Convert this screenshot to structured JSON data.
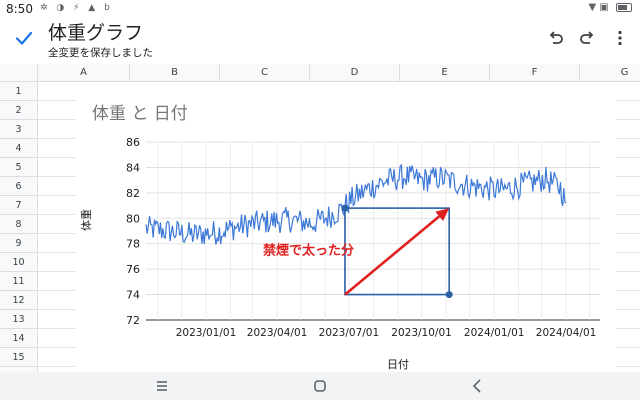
{
  "status_bar": {
    "time": "8:50",
    "left_icons": "✲ ◑ ⚡ ▲ b",
    "right_icons": "▼ ▣"
  },
  "toolbar": {
    "title": "体重グラフ",
    "subtitle": "全変更を保存しました"
  },
  "grid": {
    "columns": [
      "A",
      "B",
      "C",
      "D",
      "E",
      "F",
      "G"
    ],
    "rows": [
      "1",
      "2",
      "3",
      "4",
      "5",
      "6",
      "7",
      "8",
      "9",
      "10",
      "11",
      "12",
      "13",
      "14",
      "15",
      "16"
    ]
  },
  "chart_data": {
    "type": "line",
    "title": "体重 と 日付",
    "xlabel": "日付",
    "ylabel": "体重",
    "ylim": [
      72,
      86
    ],
    "yticks": [
      72,
      74,
      76,
      78,
      80,
      82,
      84,
      86
    ],
    "xlim": [
      "2022-10-17",
      "2024-05-14"
    ],
    "xtick_labels": [
      "2023/01/01",
      "2023/04/01",
      "2023/07/01",
      "2023/10/01",
      "2024/01/01",
      "2024/04/01"
    ],
    "xtick_dates": [
      "2023-01-01",
      "2023-04-01",
      "2023-07-01",
      "2023-10-01",
      "2024-01-01",
      "2024-04-01"
    ],
    "grid": true,
    "series": [
      {
        "color": "#3c78d8",
        "keypoints": [
          [
            "2022-10-17",
            79.2
          ],
          [
            "2022-11-15",
            79.0
          ],
          [
            "2022-12-15",
            78.7
          ],
          [
            "2023-01-15",
            78.9
          ],
          [
            "2023-02-15",
            79.4
          ],
          [
            "2023-03-15",
            79.7
          ],
          [
            "2023-04-15",
            79.9
          ],
          [
            "2023-05-15",
            79.6
          ],
          [
            "2023-06-01",
            80.0
          ],
          [
            "2023-06-20",
            80.6
          ],
          [
            "2023-07-05",
            81.5
          ],
          [
            "2023-07-25",
            82.3
          ],
          [
            "2023-08-15",
            82.9
          ],
          [
            "2023-09-10",
            83.3
          ],
          [
            "2023-10-01",
            83.0
          ],
          [
            "2023-10-25",
            83.2
          ],
          [
            "2023-11-20",
            82.7
          ],
          [
            "2023-12-15",
            82.4
          ],
          [
            "2024-01-10",
            82.2
          ],
          [
            "2024-02-10",
            82.7
          ],
          [
            "2024-03-05",
            83.1
          ],
          [
            "2024-03-25",
            82.4
          ],
          [
            "2024-04-01",
            81.2
          ]
        ]
      }
    ],
    "annotation": {
      "text": "禁煙で太った分",
      "color": "#e02020",
      "box_color": "#2a5fa5",
      "box_x": [
        "2023-06-26",
        "2023-11-05"
      ],
      "box_y": [
        74,
        80.8
      ],
      "arrow_from": [
        "2023-06-26",
        74
      ],
      "arrow_to": [
        "2023-11-05",
        80.8
      ]
    }
  },
  "nav": {
    "menu": "menu-button",
    "home": "home-button",
    "back": "back-button"
  }
}
